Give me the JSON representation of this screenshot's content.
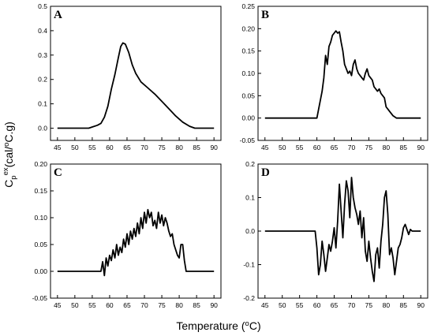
{
  "figure": {
    "xlabel_main": "Temperature (",
    "xlabel_sup": "o",
    "xlabel_tail": "C)",
    "ylabel_main": "C",
    "ylabel_sub": "p",
    "ylabel_sup": "ex",
    "ylabel_mid": "(cal/",
    "ylabel_sup2": "o",
    "ylabel_tail": "C.g)"
  },
  "chart_data": [
    {
      "type": "line",
      "panel": "A",
      "xlabel": "",
      "ylabel": "",
      "xlim": [
        43,
        92
      ],
      "ylim": [
        -0.05,
        0.5
      ],
      "xticks": [
        45,
        50,
        55,
        60,
        65,
        70,
        75,
        80,
        85,
        90
      ],
      "yticks": [
        0.0,
        0.1,
        0.2,
        0.3,
        0.4,
        0.5
      ],
      "ytick_labels": [
        "0.0",
        "0.1",
        "0.2",
        "0.3",
        "0.4",
        "0.5"
      ],
      "grid": false,
      "series": [
        {
          "color": "#000000",
          "points": [
            [
              45,
              0
            ],
            [
              54,
              0
            ],
            [
              55,
              0.005
            ],
            [
              56.5,
              0.012
            ],
            [
              57.5,
              0.02
            ],
            [
              58.5,
              0.045
            ],
            [
              59.5,
              0.09
            ],
            [
              60.5,
              0.16
            ],
            [
              61.5,
              0.22
            ],
            [
              62.5,
              0.29
            ],
            [
              63.2,
              0.335
            ],
            [
              63.8,
              0.35
            ],
            [
              64.5,
              0.345
            ],
            [
              65.5,
              0.31
            ],
            [
              66.5,
              0.26
            ],
            [
              67.5,
              0.225
            ],
            [
              69,
              0.19
            ],
            [
              71,
              0.165
            ],
            [
              73,
              0.14
            ],
            [
              75,
              0.11
            ],
            [
              77,
              0.08
            ],
            [
              79,
              0.05
            ],
            [
              81,
              0.025
            ],
            [
              83,
              0.008
            ],
            [
              84.5,
              0
            ],
            [
              90,
              0
            ]
          ]
        }
      ]
    },
    {
      "type": "line",
      "panel": "B",
      "xlabel": "",
      "ylabel": "",
      "xlim": [
        43,
        92
      ],
      "ylim": [
        -0.05,
        0.25
      ],
      "xticks": [
        45,
        50,
        55,
        60,
        65,
        70,
        75,
        80,
        85,
        90
      ],
      "yticks": [
        -0.05,
        0.0,
        0.05,
        0.1,
        0.15,
        0.2,
        0.25
      ],
      "ytick_labels": [
        "-0.05",
        "0.00",
        "0.05",
        "0.10",
        "0.15",
        "0.20",
        "0.25"
      ],
      "grid": false,
      "series": [
        {
          "color": "#000000",
          "points": [
            [
              45,
              0
            ],
            [
              60,
              0
            ],
            [
              60.5,
              0.02
            ],
            [
              61,
              0.04
            ],
            [
              61.5,
              0.06
            ],
            [
              62,
              0.09
            ],
            [
              62.5,
              0.14
            ],
            [
              63,
              0.12
            ],
            [
              63.5,
              0.16
            ],
            [
              64,
              0.17
            ],
            [
              64.5,
              0.185
            ],
            [
              65,
              0.19
            ],
            [
              65.5,
              0.195
            ],
            [
              66,
              0.19
            ],
            [
              66.5,
              0.193
            ],
            [
              67,
              0.17
            ],
            [
              67.5,
              0.15
            ],
            [
              68,
              0.12
            ],
            [
              68.5,
              0.11
            ],
            [
              69,
              0.1
            ],
            [
              69.5,
              0.105
            ],
            [
              70,
              0.095
            ],
            [
              70.5,
              0.12
            ],
            [
              71,
              0.13
            ],
            [
              71.5,
              0.11
            ],
            [
              72,
              0.1
            ],
            [
              72.5,
              0.095
            ],
            [
              73,
              0.09
            ],
            [
              73.5,
              0.085
            ],
            [
              74,
              0.1
            ],
            [
              74.5,
              0.11
            ],
            [
              75,
              0.095
            ],
            [
              75.5,
              0.09
            ],
            [
              76,
              0.085
            ],
            [
              76.5,
              0.07
            ],
            [
              77,
              0.065
            ],
            [
              77.5,
              0.06
            ],
            [
              78,
              0.065
            ],
            [
              78.5,
              0.055
            ],
            [
              79,
              0.05
            ],
            [
              79.5,
              0.045
            ],
            [
              80,
              0.025
            ],
            [
              80.5,
              0.02
            ],
            [
              81,
              0.015
            ],
            [
              82,
              0.005
            ],
            [
              83,
              0
            ],
            [
              90,
              0
            ]
          ]
        }
      ]
    },
    {
      "type": "line",
      "panel": "C",
      "xlabel": "",
      "ylabel": "",
      "xlim": [
        43,
        92
      ],
      "ylim": [
        -0.05,
        0.2
      ],
      "xticks": [
        45,
        50,
        55,
        60,
        65,
        70,
        75,
        80,
        85,
        90
      ],
      "yticks": [
        -0.05,
        0.0,
        0.05,
        0.1,
        0.15,
        0.2
      ],
      "ytick_labels": [
        "-0.05",
        "0.00",
        "0.05",
        "0.10",
        "0.15",
        "0.20"
      ],
      "grid": false,
      "series": [
        {
          "color": "#000000",
          "points": [
            [
              45,
              0
            ],
            [
              57.5,
              0
            ],
            [
              58,
              0.018
            ],
            [
              58.5,
              -0.008
            ],
            [
              59,
              0.025
            ],
            [
              59.5,
              0.01
            ],
            [
              60,
              0.03
            ],
            [
              60.5,
              0.02
            ],
            [
              61,
              0.04
            ],
            [
              61.5,
              0.025
            ],
            [
              62,
              0.05
            ],
            [
              62.5,
              0.03
            ],
            [
              63,
              0.045
            ],
            [
              63.5,
              0.035
            ],
            [
              64,
              0.06
            ],
            [
              64.5,
              0.045
            ],
            [
              65,
              0.07
            ],
            [
              65.5,
              0.05
            ],
            [
              66,
              0.075
            ],
            [
              66.5,
              0.06
            ],
            [
              67,
              0.08
            ],
            [
              67.5,
              0.065
            ],
            [
              68,
              0.09
            ],
            [
              68.5,
              0.07
            ],
            [
              69,
              0.1
            ],
            [
              69.5,
              0.08
            ],
            [
              70,
              0.11
            ],
            [
              70.5,
              0.09
            ],
            [
              71,
              0.115
            ],
            [
              71.5,
              0.1
            ],
            [
              72,
              0.11
            ],
            [
              72.5,
              0.085
            ],
            [
              73,
              0.095
            ],
            [
              73.5,
              0.08
            ],
            [
              74,
              0.11
            ],
            [
              74.5,
              0.09
            ],
            [
              75,
              0.105
            ],
            [
              75.5,
              0.085
            ],
            [
              76,
              0.1
            ],
            [
              76.5,
              0.09
            ],
            [
              77,
              0.075
            ],
            [
              77.5,
              0.065
            ],
            [
              78,
              0.07
            ],
            [
              78.5,
              0.05
            ],
            [
              79,
              0.04
            ],
            [
              79.5,
              0.03
            ],
            [
              80,
              0.025
            ],
            [
              80.5,
              0.05
            ],
            [
              81,
              0.05
            ],
            [
              81.5,
              0.02
            ],
            [
              82,
              0
            ],
            [
              90,
              0
            ]
          ]
        }
      ]
    },
    {
      "type": "line",
      "panel": "D",
      "xlabel": "",
      "ylabel": "",
      "xlim": [
        43,
        92
      ],
      "ylim": [
        -0.2,
        0.2
      ],
      "xticks": [
        45,
        50,
        55,
        60,
        65,
        70,
        75,
        80,
        85,
        90
      ],
      "yticks": [
        -0.2,
        -0.1,
        0.0,
        0.1,
        0.2
      ],
      "ytick_labels": [
        "-0.2",
        "-0.1",
        "0.0",
        "0.1",
        "0.2"
      ],
      "grid": false,
      "series": [
        {
          "color": "#000000",
          "points": [
            [
              45,
              0
            ],
            [
              59.5,
              0
            ],
            [
              60,
              -0.05
            ],
            [
              60.5,
              -0.13
            ],
            [
              61,
              -0.1
            ],
            [
              61.5,
              -0.03
            ],
            [
              62,
              -0.07
            ],
            [
              62.5,
              -0.12
            ],
            [
              63,
              -0.08
            ],
            [
              63.5,
              -0.04
            ],
            [
              64,
              -0.06
            ],
            [
              64.5,
              -0.03
            ],
            [
              65,
              0.01
            ],
            [
              65.5,
              -0.05
            ],
            [
              66,
              0.03
            ],
            [
              66.5,
              0.14
            ],
            [
              67,
              0.06
            ],
            [
              67.5,
              -0.02
            ],
            [
              68,
              0.08
            ],
            [
              68.5,
              0.15
            ],
            [
              69,
              0.12
            ],
            [
              69.5,
              0.04
            ],
            [
              70,
              0.16
            ],
            [
              70.5,
              0.1
            ],
            [
              71,
              0.07
            ],
            [
              71.5,
              0.05
            ],
            [
              72,
              0.02
            ],
            [
              72.5,
              0.06
            ],
            [
              73,
              -0.02
            ],
            [
              73.5,
              0.04
            ],
            [
              74,
              -0.06
            ],
            [
              74.5,
              -0.09
            ],
            [
              75,
              -0.03
            ],
            [
              75.5,
              -0.08
            ],
            [
              76,
              -0.12
            ],
            [
              76.5,
              -0.15
            ],
            [
              77,
              -0.07
            ],
            [
              77.5,
              -0.05
            ],
            [
              78,
              -0.11
            ],
            [
              78.5,
              -0.03
            ],
            [
              79,
              0.02
            ],
            [
              79.5,
              0.1
            ],
            [
              80,
              0.12
            ],
            [
              80.5,
              0.05
            ],
            [
              81,
              -0.07
            ],
            [
              81.5,
              -0.05
            ],
            [
              82,
              -0.08
            ],
            [
              82.5,
              -0.13
            ],
            [
              83,
              -0.09
            ],
            [
              83.5,
              -0.05
            ],
            [
              84,
              -0.04
            ],
            [
              84.5,
              -0.02
            ],
            [
              85,
              0.01
            ],
            [
              85.5,
              0.02
            ],
            [
              86,
              0.005
            ],
            [
              86.5,
              -0.01
            ],
            [
              87,
              0.005
            ],
            [
              87.5,
              0
            ],
            [
              90,
              0
            ]
          ]
        }
      ]
    }
  ]
}
